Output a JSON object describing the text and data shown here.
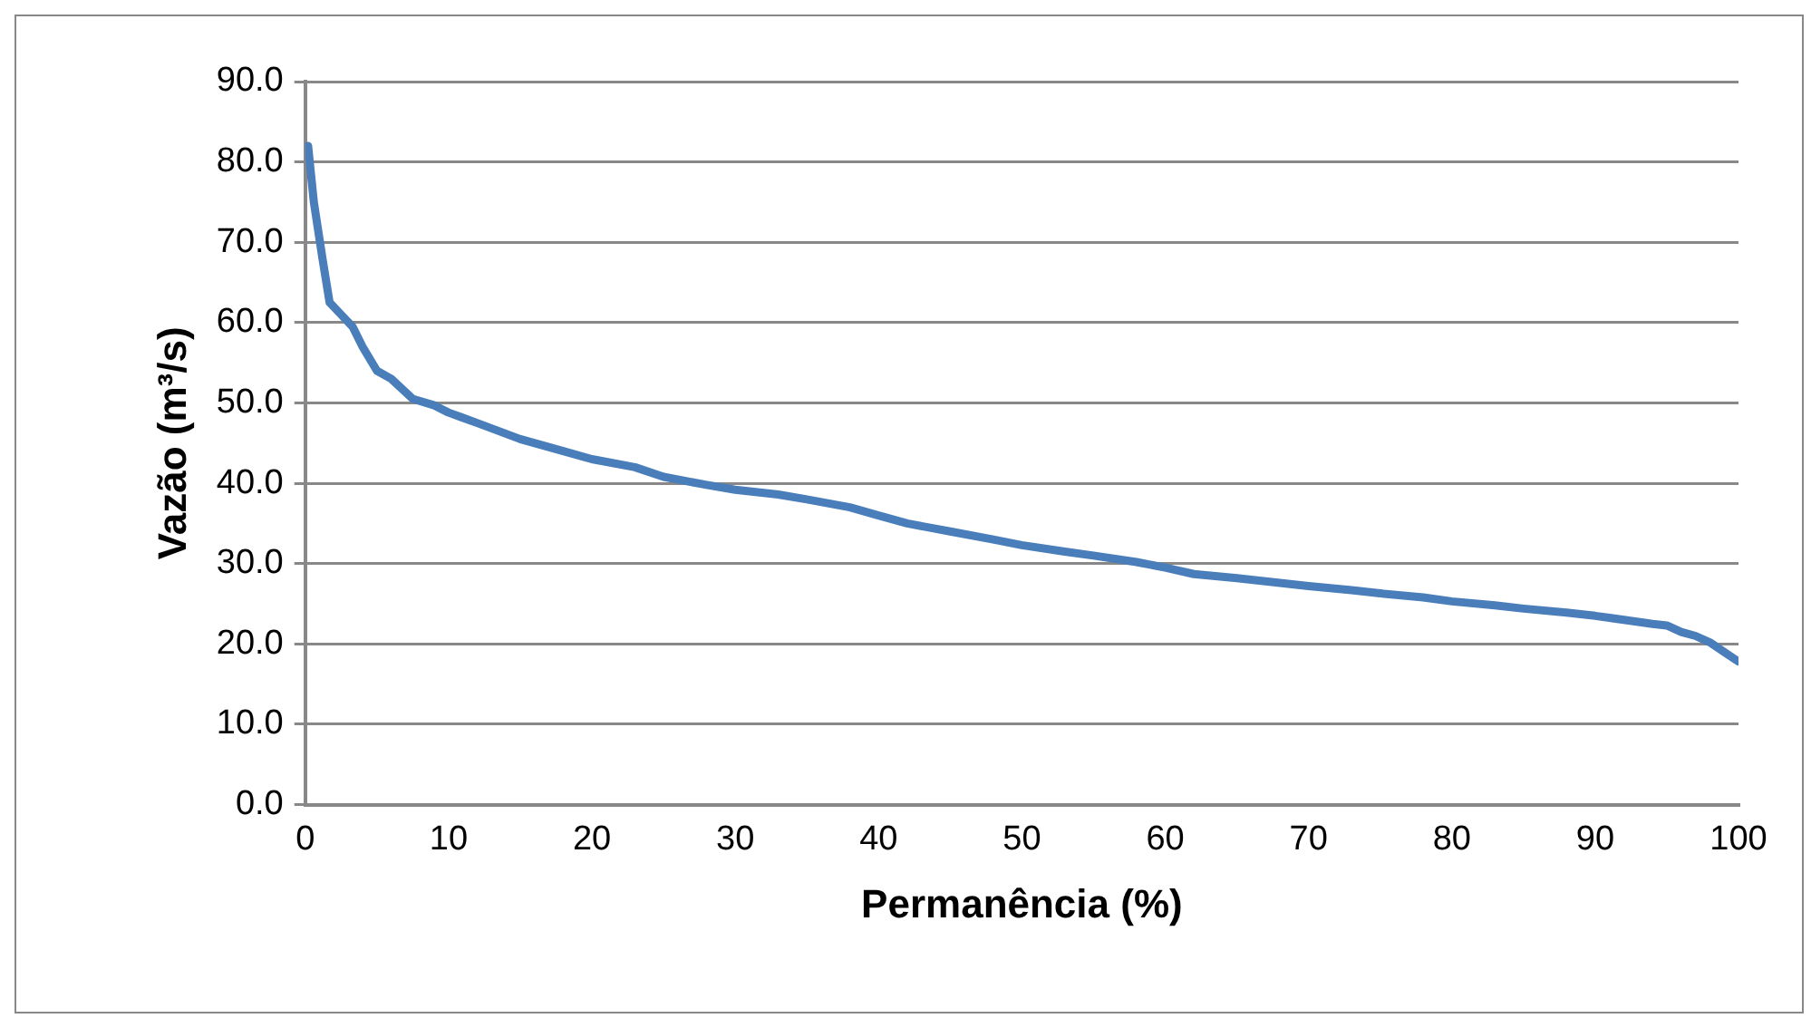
{
  "chart_data": {
    "type": "line",
    "xlabel": "Permanência (%)",
    "ylabel": "Vazão (m³/s)",
    "x": [
      0.2,
      0.6,
      1.2,
      1.7,
      2.5,
      3.3,
      4,
      5,
      6,
      7.5,
      9,
      10,
      12,
      15,
      18,
      20,
      23,
      25,
      28,
      30,
      33,
      35,
      38,
      40,
      42,
      45,
      48,
      50,
      53,
      55,
      58,
      60,
      62,
      65,
      68,
      70,
      73,
      75,
      78,
      80,
      83,
      85,
      88,
      90,
      92,
      94,
      95,
      96,
      97,
      98,
      99,
      100
    ],
    "series": [
      {
        "color": "#4a7ebb",
        "values": [
          82,
          75,
          68,
          62.5,
          61,
          59.5,
          57,
          54,
          53,
          50.5,
          49.7,
          48.8,
          47.5,
          45.5,
          44,
          43,
          42,
          40.8,
          39.8,
          39.2,
          38.6,
          38,
          37,
          36,
          35,
          34,
          33,
          32.3,
          31.5,
          31,
          30.2,
          29.5,
          28.7,
          28.2,
          27.6,
          27.2,
          26.7,
          26.3,
          25.8,
          25.3,
          24.8,
          24.4,
          23.9,
          23.5,
          23,
          22.5,
          22.3,
          21.5,
          21,
          20.2,
          19,
          17.8
        ]
      }
    ],
    "xlim": [
      0,
      100
    ],
    "xticks": [
      0,
      10,
      20,
      30,
      40,
      50,
      60,
      70,
      80,
      90,
      100
    ],
    "ylim": [
      0,
      90
    ],
    "yticks": [
      {
        "value": 0,
        "label": "0.0"
      },
      {
        "value": 10,
        "label": "10.0"
      },
      {
        "value": 20,
        "label": "20.0"
      },
      {
        "value": 30,
        "label": "30.0"
      },
      {
        "value": 40,
        "label": "40.0"
      },
      {
        "value": 50,
        "label": "50.0"
      },
      {
        "value": 60,
        "label": "60.0"
      },
      {
        "value": 70,
        "label": "70.0"
      },
      {
        "value": 80,
        "label": "80.0"
      },
      {
        "value": 90,
        "label": "90.0"
      }
    ],
    "grid": "y",
    "legend": false,
    "marker": "none",
    "line_style": "solid"
  }
}
